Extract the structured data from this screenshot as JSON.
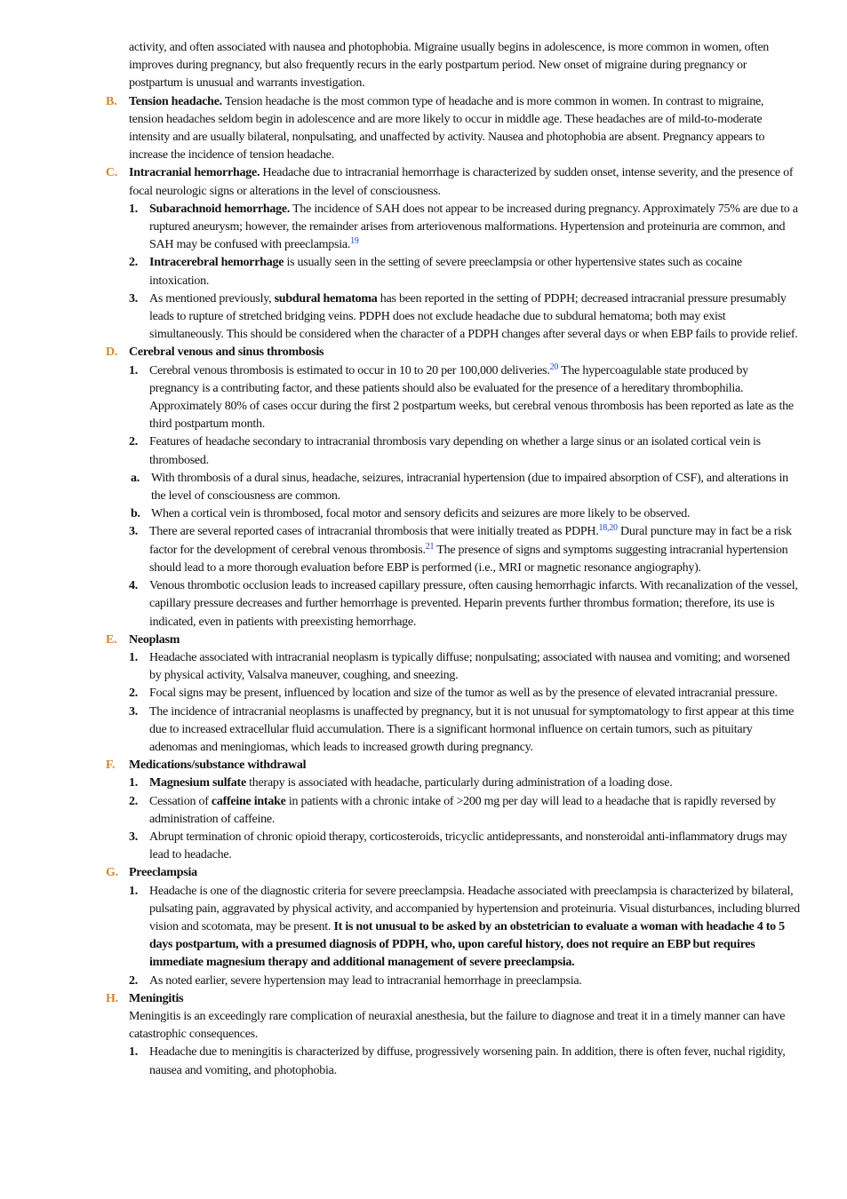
{
  "intro": [
    {
      "t": "activity, and often associated with nausea and photophobia. Migraine usually begins in adolescence, is more common in women, often improves during pregnancy, but also frequently recurs in the early postpartum period. New onset of migraine during pregnancy or postpartum is unusual and warrants investigation."
    }
  ],
  "sections": [
    {
      "letter": "B.",
      "body": [
        {
          "b": "Tension headache."
        },
        {
          "t": " Tension headache is the most common type of headache and is more common in women. In contrast to migraine, tension headaches seldom begin in adolescence and are more likely to occur in middle age. These headaches are of mild-to-moderate intensity and are usually bilateral, nonpulsating, and unaffected by activity. Nausea and photophobia are absent. Pregnancy appears to increase the incidence of tension headache."
        }
      ]
    },
    {
      "letter": "C.",
      "body": [
        {
          "b": "Intracranial hemorrhage."
        },
        {
          "t": " Headache due to intracranial hemorrhage is characterized by sudden onset, intense severity, and the presence of focal neurologic signs or alterations in the level of consciousness."
        }
      ],
      "items": [
        {
          "num": "1.",
          "body": [
            {
              "b": "Subarachnoid hemorrhage."
            },
            {
              "t": " The incidence of SAH does not appear to be increased during pregnancy. Approximately 75% are due to a ruptured aneurysm; however, the remainder arises from arteriovenous malformations. Hypertension and proteinuria are common, and SAH may be confused with preeclampsia."
            },
            {
              "sup": "19"
            }
          ]
        },
        {
          "num": "2.",
          "body": [
            {
              "b": "Intracerebral hemorrhage"
            },
            {
              "t": " is usually seen in the setting of severe preeclampsia or other hypertensive states such as cocaine intoxication."
            }
          ]
        },
        {
          "num": "3.",
          "body": [
            {
              "t": "As mentioned previously, "
            },
            {
              "b": "subdural hematoma"
            },
            {
              "t": " has been reported in the setting of PDPH; decreased intracranial pressure presumably leads to rupture of stretched bridging veins. PDPH does not exclude headache due to subdural hematoma; both may exist simultaneously. This should be considered when the character of a PDPH changes after several days or when EBP fails to provide relief."
            }
          ]
        }
      ]
    },
    {
      "letter": "D.",
      "body": [
        {
          "b": "Cerebral venous and sinus thrombosis"
        }
      ],
      "items": [
        {
          "num": "1.",
          "body": [
            {
              "t": "Cerebral venous thrombosis is estimated to occur in 10 to 20 per 100,000 deliveries."
            },
            {
              "sup": "20"
            },
            {
              "t": " The hypercoagulable state produced by pregnancy is a contributing factor, and these patients should also be evaluated for the presence of a hereditary thrombophilia. Approximately 80% of cases occur during the first 2 postpartum weeks, but cerebral venous thrombosis has been reported as late as the third postpartum month."
            }
          ]
        },
        {
          "num": "2.",
          "body": [
            {
              "t": "Features of headache secondary to intracranial thrombosis vary depending on whether a large sinus or an isolated cortical vein is thrombosed."
            }
          ],
          "items": [
            {
              "num": "a.",
              "body": [
                {
                  "t": "With thrombosis of a dural sinus, headache, seizures, intracranial hypertension (due to impaired absorption of CSF), and alterations in the level of consciousness are common."
                }
              ]
            },
            {
              "num": "b.",
              "body": [
                {
                  "t": "When a cortical vein is thrombosed, focal motor and sensory deficits and seizures are more likely to be observed."
                }
              ]
            }
          ]
        },
        {
          "num": "3.",
          "body": [
            {
              "t": "There are several reported cases of intracranial thrombosis that were initially treated as PDPH."
            },
            {
              "sup": "18,20"
            },
            {
              "t": " Dural puncture may in fact be a risk factor for the development of cerebral venous thrombosis."
            },
            {
              "sup": "21"
            },
            {
              "t": " The presence of signs and symptoms suggesting intracranial hypertension should lead to a more thorough evaluation before EBP is performed (i.e., MRI or magnetic resonance angiography)."
            }
          ]
        },
        {
          "num": "4.",
          "body": [
            {
              "t": "Venous thrombotic occlusion leads to increased capillary pressure, often causing hemorrhagic infarcts. With recanalization of the vessel, capillary pressure decreases and further hemorrhage is prevented. Heparin prevents further thrombus formation; therefore, its use is indicated, even in patients with preexisting hemorrhage."
            }
          ]
        }
      ]
    },
    {
      "letter": "E.",
      "body": [
        {
          "b": "Neoplasm"
        }
      ],
      "items": [
        {
          "num": "1.",
          "body": [
            {
              "t": "Headache associated with intracranial neoplasm is typically diffuse; nonpulsating; associated with nausea and vomiting; and worsened by physical activity, Valsalva maneuver, coughing, and sneezing."
            }
          ]
        },
        {
          "num": "2.",
          "body": [
            {
              "t": "Focal signs may be present, influenced by location and size of the tumor as well as by the presence of elevated intracranial pressure."
            }
          ]
        },
        {
          "num": "3.",
          "body": [
            {
              "t": "The incidence of intracranial neoplasms is unaffected by pregnancy, but it is not unusual for symptomatology to first appear at this time due to increased extracellular fluid accumulation. There is a significant hormonal influence on certain tumors, such as pituitary adenomas and meningiomas, which leads to increased growth during pregnancy."
            }
          ]
        }
      ]
    },
    {
      "letter": "F.",
      "body": [
        {
          "b": "Medications/substance withdrawal"
        }
      ],
      "items": [
        {
          "num": "1.",
          "body": [
            {
              "b": "Magnesium sulfate"
            },
            {
              "t": " therapy is associated with headache, particularly during administration of a loading dose."
            }
          ]
        },
        {
          "num": "2.",
          "body": [
            {
              "t": "Cessation of "
            },
            {
              "b": "caffeine intake"
            },
            {
              "t": " in patients with a chronic intake of >200 mg per day will lead to a headache that is rapidly reversed by administration of caffeine."
            }
          ]
        },
        {
          "num": "3.",
          "body": [
            {
              "t": "Abrupt termination of chronic opioid therapy, corticosteroids, tricyclic antidepressants, and nonsteroidal anti-inflammatory drugs may lead to headache."
            }
          ]
        }
      ]
    },
    {
      "letter": "G.",
      "body": [
        {
          "b": "Preeclampsia"
        }
      ],
      "items": [
        {
          "num": "1.",
          "body": [
            {
              "t": "Headache is one of the diagnostic criteria for severe preeclampsia. Headache associated with preeclampsia is characterized by bilateral, pulsating pain, aggravated by physical activity, and accompanied by hypertension and proteinuria. Visual disturbances, including blurred vision and scotomata, may be present. "
            },
            {
              "b": "It is not unusual to be asked by an obstetrician to evaluate a woman with headache 4 to 5 days postpartum, with a presumed diagnosis of PDPH, who, upon careful history, does not require an EBP but requires immediate magnesium therapy and additional management of severe preeclampsia."
            }
          ]
        },
        {
          "num": "2.",
          "body": [
            {
              "t": "As noted earlier, severe hypertension may lead to intracranial hemorrhage in preeclampsia."
            }
          ]
        }
      ]
    },
    {
      "letter": "H.",
      "body": [
        {
          "b": "Meningitis"
        }
      ],
      "para": [
        {
          "t": "Meningitis is an exceedingly rare complication of neuraxial anesthesia, but the failure to diagnose and treat it in a timely manner can have catastrophic consequences."
        }
      ],
      "items": [
        {
          "num": "1.",
          "body": [
            {
              "t": "Headache due to meningitis is characterized by diffuse, progressively worsening pain. In addition, there is often fever, nuchal rigidity, nausea and vomiting, and photophobia."
            }
          ]
        }
      ]
    }
  ]
}
